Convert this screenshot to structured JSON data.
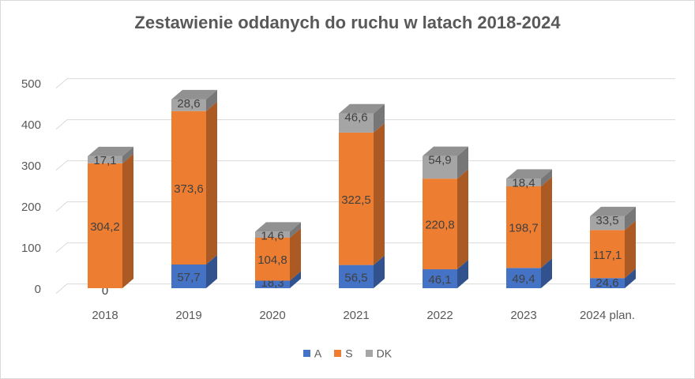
{
  "chart_data": {
    "type": "bar",
    "stacked": true,
    "title": "Zestawienie oddanych do ruchu w latach 2018-2024",
    "categories": [
      "2018",
      "2019",
      "2020",
      "2021",
      "2022",
      "2023",
      "2024 plan."
    ],
    "series": [
      {
        "name": "A",
        "color": "#4472C4",
        "values": [
          0,
          57.7,
          18.3,
          56.5,
          46.1,
          49.4,
          24.6
        ],
        "labels": [
          "0",
          "57,7",
          "18,3",
          "56,5",
          "46,1",
          "49,4",
          "24,6"
        ]
      },
      {
        "name": "S",
        "color": "#ED7D31",
        "values": [
          304.2,
          373.6,
          104.8,
          322.5,
          220.8,
          198.7,
          117.1
        ],
        "labels": [
          "304,2",
          "373,6",
          "104,8",
          "322,5",
          "220,8",
          "198,7",
          "117,1"
        ]
      },
      {
        "name": "DK",
        "color": "#A5A5A5",
        "values": [
          17.1,
          28.6,
          14.6,
          46.6,
          54.9,
          18.4,
          33.5
        ],
        "labels": [
          "17,1",
          "28,6",
          "14,6",
          "46,6",
          "54,9",
          "18,4",
          "33,5"
        ]
      }
    ],
    "y_ticks": [
      "0",
      "100",
      "200",
      "300",
      "400",
      "500"
    ],
    "ylim": [
      0,
      500
    ],
    "grid": true,
    "legend_position": "bottom"
  }
}
